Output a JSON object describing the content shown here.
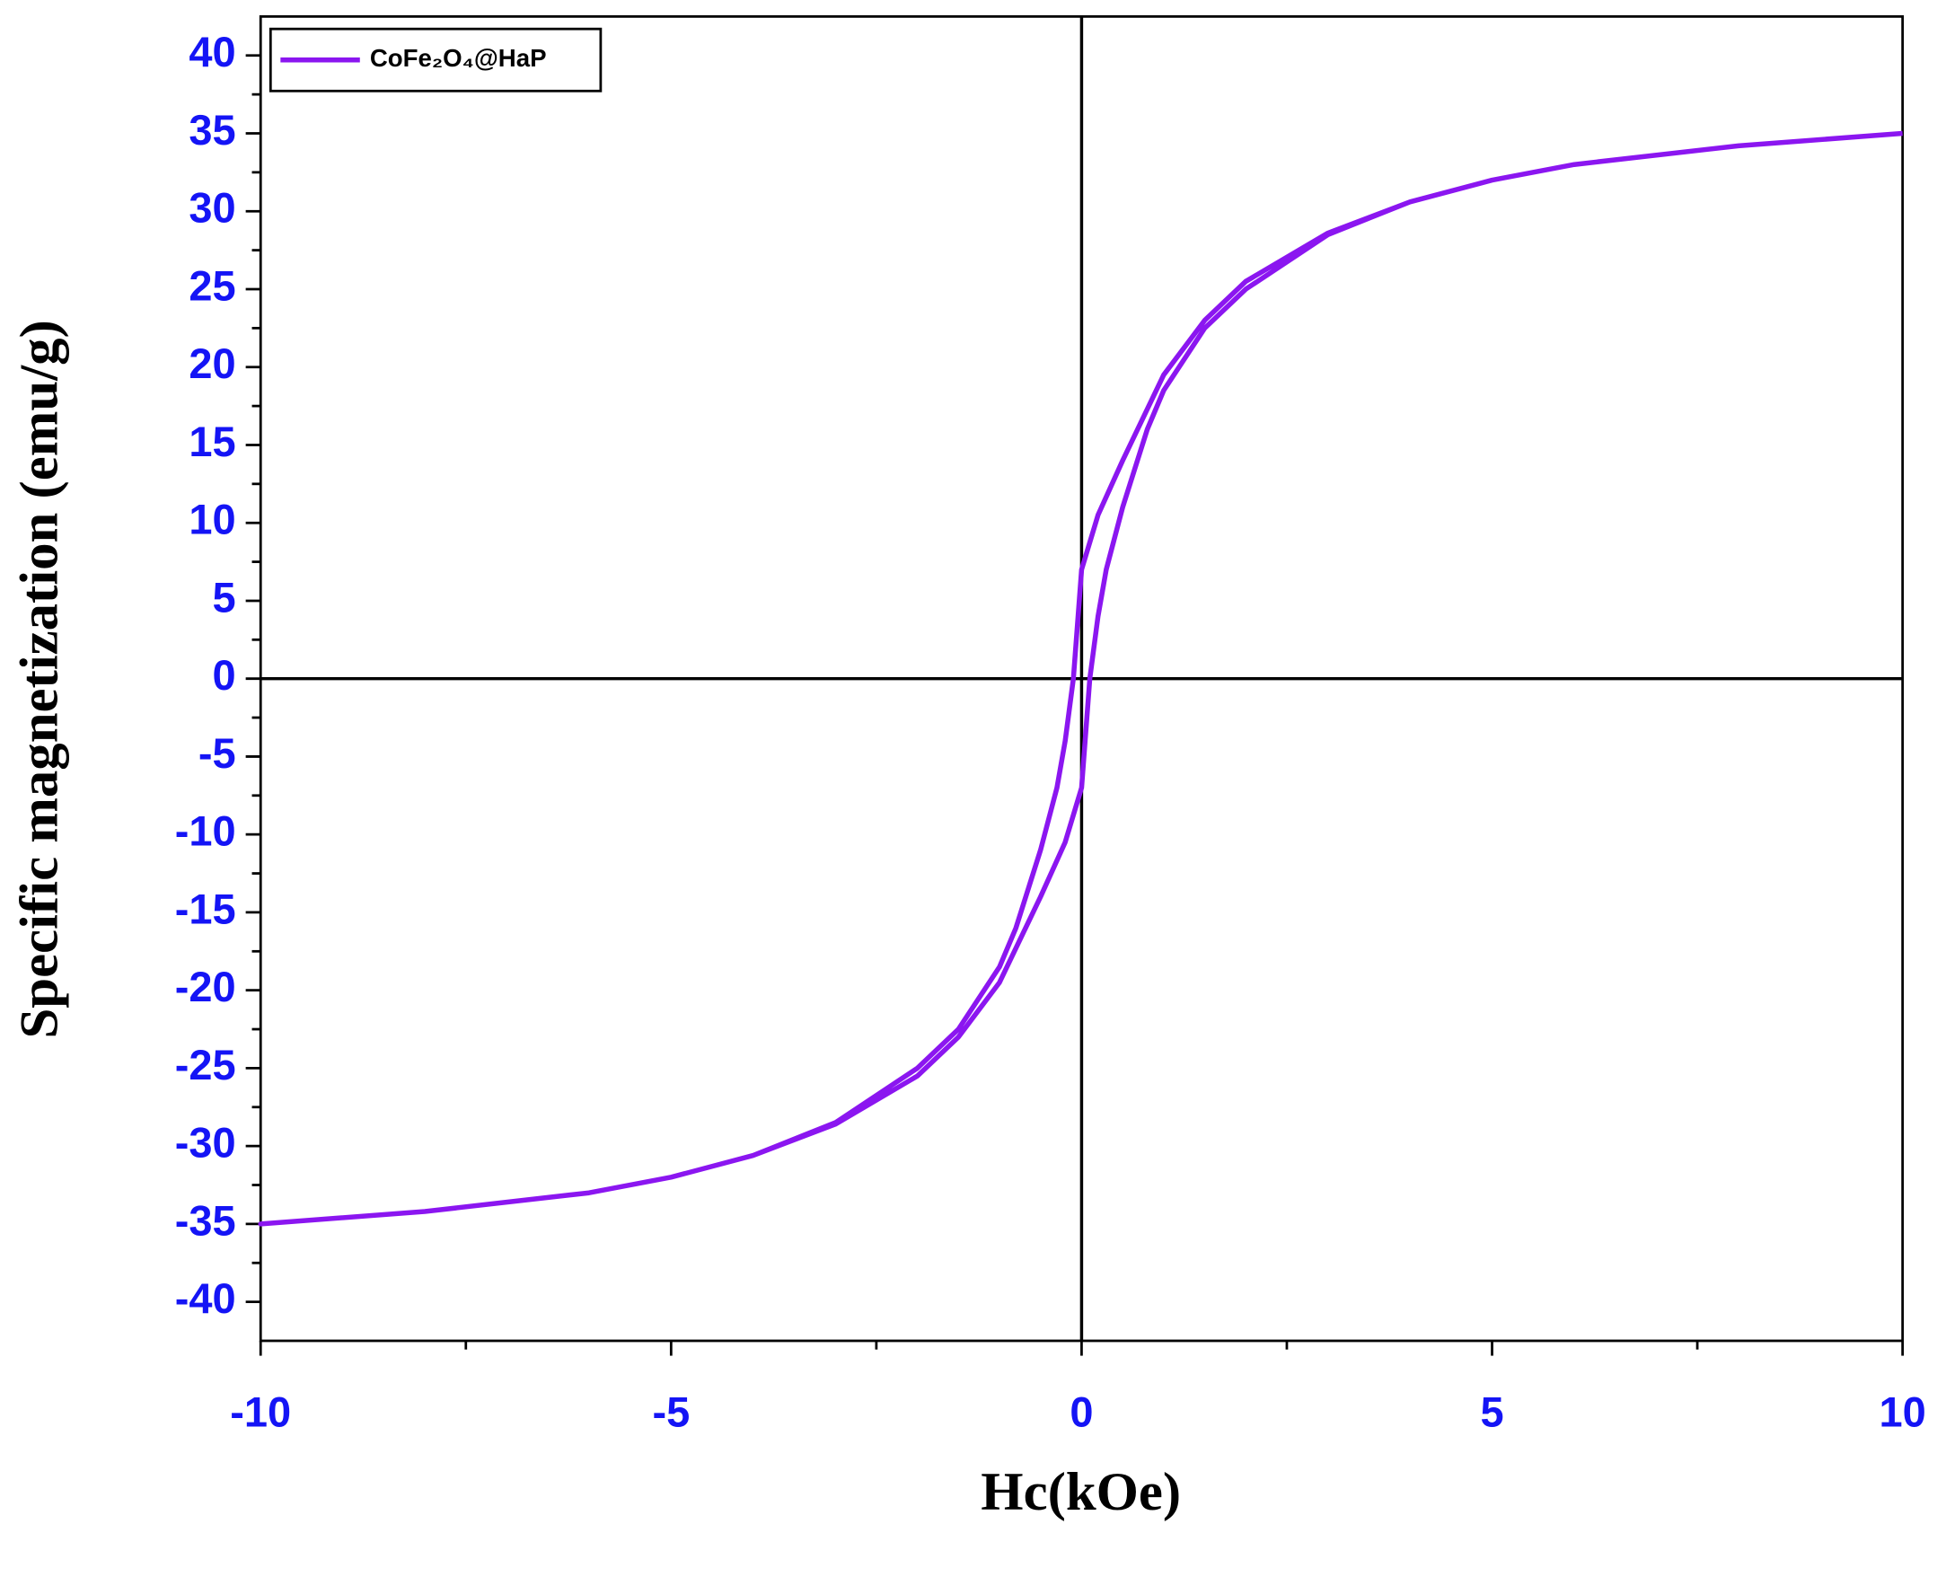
{
  "chart_data": {
    "type": "line",
    "x_label": "Hc(kOe)",
    "y_label": "Specific magnetization (emu/g)",
    "x": [
      10,
      8,
      6,
      5,
      4,
      3,
      2,
      1.5,
      1,
      0.5,
      0.2,
      0,
      -0.1,
      -0.2,
      -0.3,
      -0.5,
      -0.8,
      -1,
      -1.5,
      -2,
      -3,
      -4,
      -5,
      -6,
      -8,
      -10,
      -8,
      -6,
      -5,
      -4,
      -3,
      -2,
      -1.5,
      -1,
      -0.5,
      -0.2,
      0,
      0.1,
      0.2,
      0.3,
      0.5,
      0.8,
      1,
      1.5,
      2,
      3,
      4,
      5,
      6,
      8,
      10
    ],
    "series": [
      {
        "name": "CoFe₂O₄@HaP",
        "color": "#8b16f0",
        "values": [
          35,
          34.2,
          33,
          32,
          30.6,
          28.6,
          25.5,
          23,
          19.5,
          14,
          10.5,
          7,
          0,
          -4,
          -7,
          -11,
          -16,
          -18.5,
          -22.5,
          -25,
          -28.5,
          -30.6,
          -32,
          -33,
          -34.2,
          -35,
          -34.2,
          -33,
          -32,
          -30.6,
          -28.6,
          -25.5,
          -23,
          -19.5,
          -14,
          -10.5,
          -7,
          0,
          4,
          7,
          11,
          16,
          18.5,
          22.5,
          25,
          28.5,
          30.6,
          32,
          33,
          34.2,
          35
        ]
      }
    ],
    "xlim": [
      -10,
      10
    ],
    "ylim": [
      -42.5,
      42.5
    ],
    "xticks": [
      -10,
      -5,
      0,
      5,
      10
    ],
    "yticks": [
      -40,
      -35,
      -30,
      -25,
      -20,
      -15,
      -10,
      -5,
      0,
      5,
      10,
      15,
      20,
      25,
      30,
      35,
      40
    ],
    "x_minor_ticks": [
      -7.5,
      -2.5,
      2.5,
      7.5
    ],
    "y_minor_ticks": [
      -37.5,
      -32.5,
      -27.5,
      -22.5,
      -17.5,
      -12.5,
      -7.5,
      -2.5,
      2.5,
      7.5,
      12.5,
      17.5,
      22.5,
      27.5,
      32.5,
      37.5
    ],
    "zero_lines": true,
    "legend": "top-left"
  }
}
